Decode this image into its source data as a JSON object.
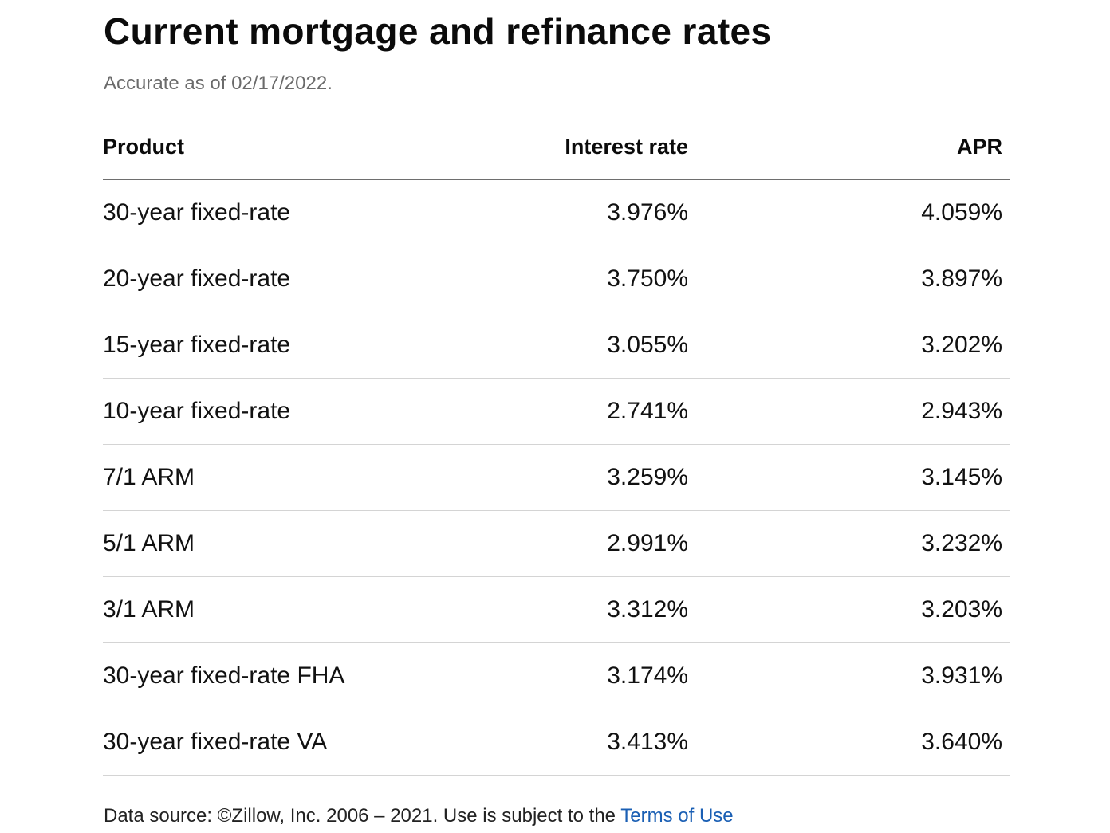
{
  "title": "Current mortgage and refinance rates",
  "subtitle": "Accurate as of 02/17/2022.",
  "table": {
    "headers": {
      "product": "Product",
      "interest_rate": "Interest rate",
      "apr": "APR"
    },
    "rows": [
      {
        "product": "30-year fixed-rate",
        "interest_rate": "3.976%",
        "apr": "4.059%"
      },
      {
        "product": "20-year fixed-rate",
        "interest_rate": "3.750%",
        "apr": "3.897%"
      },
      {
        "product": "15-year fixed-rate",
        "interest_rate": "3.055%",
        "apr": "3.202%"
      },
      {
        "product": "10-year fixed-rate",
        "interest_rate": "2.741%",
        "apr": "2.943%"
      },
      {
        "product": "7/1 ARM",
        "interest_rate": "3.259%",
        "apr": "3.145%"
      },
      {
        "product": "5/1 ARM",
        "interest_rate": "2.991%",
        "apr": "3.232%"
      },
      {
        "product": "3/1 ARM",
        "interest_rate": "3.312%",
        "apr": "3.203%"
      },
      {
        "product": "30-year fixed-rate FHA",
        "interest_rate": "3.174%",
        "apr": "3.931%"
      },
      {
        "product": "30-year fixed-rate VA",
        "interest_rate": "3.413%",
        "apr": "3.640%"
      }
    ]
  },
  "footer": {
    "text": "Data source: ©Zillow, Inc. 2006 – 2021. Use is subject to the ",
    "link_label": "Terms of Use"
  },
  "colors": {
    "link": "#1a5fb4",
    "subtitle": "#6b6b6b"
  }
}
